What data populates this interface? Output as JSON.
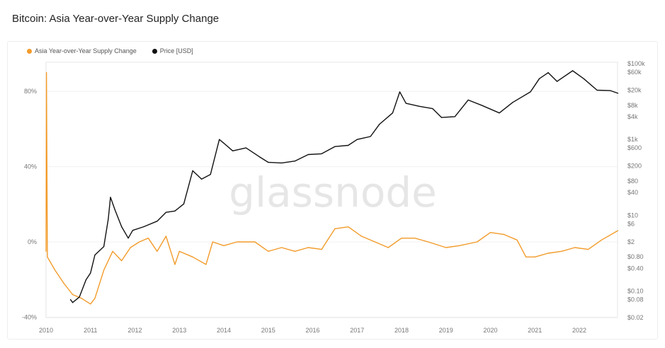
{
  "title": "Bitcoin: Asia Year-over-Year Supply Change",
  "watermark": "glassnode",
  "colors": {
    "supply": "#f29b2a",
    "price": "#111111"
  },
  "chart_data": {
    "type": "line",
    "title": "Bitcoin: Asia Year-over-Year Supply Change",
    "legend_position": "top-left",
    "x_ticks": [
      "2010",
      "2011",
      "2012",
      "2013",
      "2014",
      "2015",
      "2016",
      "2017",
      "2018",
      "2019",
      "2020",
      "2021",
      "2022"
    ],
    "xlim": [
      2010,
      2022.87
    ],
    "y_left": {
      "ticks": [
        "80%",
        "40%",
        "0%",
        "-40%"
      ],
      "tick_values": [
        80,
        40,
        0,
        -40
      ],
      "range": [
        -40,
        90
      ]
    },
    "y_right": {
      "scale": "log",
      "ticks": [
        "$100k",
        "$60k",
        "$20k",
        "$8k",
        "$4k",
        "$1k",
        "$600",
        "$200",
        "$80",
        "$40",
        "$10",
        "$6",
        "$2",
        "$0.80",
        "$0.40",
        "$0.10",
        "$0.08",
        "$0.02"
      ],
      "tick_values": [
        100000,
        60000,
        20000,
        8000,
        4000,
        1000,
        600,
        200,
        80,
        40,
        10,
        6,
        2,
        0.8,
        0.4,
        0.1,
        0.08,
        0.02
      ],
      "range": [
        0.02,
        100000
      ]
    },
    "grid": true,
    "series": [
      {
        "name": "Asia Year-over-Year Supply Change",
        "axis": "left",
        "points": [
          [
            2010.0,
            -5
          ],
          [
            2010.01,
            90
          ],
          [
            2010.03,
            -8
          ],
          [
            2010.2,
            -15
          ],
          [
            2010.4,
            -22
          ],
          [
            2010.6,
            -28
          ],
          [
            2010.8,
            -30
          ],
          [
            2011.0,
            -33
          ],
          [
            2011.1,
            -30
          ],
          [
            2011.3,
            -15
          ],
          [
            2011.5,
            -5
          ],
          [
            2011.7,
            -10
          ],
          [
            2011.9,
            -3
          ],
          [
            2012.1,
            0
          ],
          [
            2012.3,
            2
          ],
          [
            2012.5,
            -5
          ],
          [
            2012.7,
            3
          ],
          [
            2012.9,
            -12
          ],
          [
            2013.0,
            -5
          ],
          [
            2013.3,
            -8
          ],
          [
            2013.6,
            -12
          ],
          [
            2013.75,
            0
          ],
          [
            2014.0,
            -2
          ],
          [
            2014.3,
            0
          ],
          [
            2014.7,
            0
          ],
          [
            2015.0,
            -5
          ],
          [
            2015.3,
            -3
          ],
          [
            2015.6,
            -5
          ],
          [
            2015.9,
            -3
          ],
          [
            2016.2,
            -4
          ],
          [
            2016.5,
            7
          ],
          [
            2016.8,
            8
          ],
          [
            2017.1,
            3
          ],
          [
            2017.4,
            0
          ],
          [
            2017.7,
            -3
          ],
          [
            2018.0,
            2
          ],
          [
            2018.3,
            2
          ],
          [
            2018.6,
            0
          ],
          [
            2019.0,
            -3
          ],
          [
            2019.3,
            -2
          ],
          [
            2019.7,
            0
          ],
          [
            2020.0,
            5
          ],
          [
            2020.3,
            4
          ],
          [
            2020.6,
            1
          ],
          [
            2020.8,
            -8
          ],
          [
            2021.0,
            -8
          ],
          [
            2021.3,
            -6
          ],
          [
            2021.6,
            -5
          ],
          [
            2021.9,
            -3
          ],
          [
            2022.2,
            -4
          ],
          [
            2022.5,
            1
          ],
          [
            2022.87,
            6
          ]
        ]
      },
      {
        "name": "Price [USD]",
        "axis": "right",
        "points": [
          [
            2010.55,
            0.06
          ],
          [
            2010.6,
            0.05
          ],
          [
            2010.75,
            0.07
          ],
          [
            2010.9,
            0.2
          ],
          [
            2011.0,
            0.3
          ],
          [
            2011.1,
            0.9
          ],
          [
            2011.3,
            1.5
          ],
          [
            2011.4,
            8
          ],
          [
            2011.45,
            30
          ],
          [
            2011.55,
            14
          ],
          [
            2011.7,
            5
          ],
          [
            2011.85,
            2.5
          ],
          [
            2011.95,
            4
          ],
          [
            2012.2,
            5
          ],
          [
            2012.5,
            7
          ],
          [
            2012.7,
            12
          ],
          [
            2012.9,
            13
          ],
          [
            2013.1,
            20
          ],
          [
            2013.3,
            150
          ],
          [
            2013.5,
            90
          ],
          [
            2013.7,
            120
          ],
          [
            2013.9,
            1000
          ],
          [
            2014.0,
            800
          ],
          [
            2014.2,
            500
          ],
          [
            2014.5,
            600
          ],
          [
            2014.8,
            350
          ],
          [
            2015.0,
            250
          ],
          [
            2015.3,
            240
          ],
          [
            2015.6,
            270
          ],
          [
            2015.9,
            400
          ],
          [
            2016.2,
            420
          ],
          [
            2016.5,
            650
          ],
          [
            2016.8,
            700
          ],
          [
            2017.0,
            1000
          ],
          [
            2017.3,
            1200
          ],
          [
            2017.5,
            2500
          ],
          [
            2017.8,
            5000
          ],
          [
            2017.96,
            18000
          ],
          [
            2018.1,
            9000
          ],
          [
            2018.4,
            7500
          ],
          [
            2018.7,
            6500
          ],
          [
            2018.9,
            3800
          ],
          [
            2019.2,
            4000
          ],
          [
            2019.5,
            11000
          ],
          [
            2019.8,
            8000
          ],
          [
            2020.2,
            5000
          ],
          [
            2020.5,
            9500
          ],
          [
            2020.9,
            18000
          ],
          [
            2021.1,
            40000
          ],
          [
            2021.3,
            58000
          ],
          [
            2021.5,
            34000
          ],
          [
            2021.85,
            65000
          ],
          [
            2022.1,
            40000
          ],
          [
            2022.4,
            20000
          ],
          [
            2022.7,
            19500
          ],
          [
            2022.87,
            16500
          ]
        ]
      }
    ]
  }
}
